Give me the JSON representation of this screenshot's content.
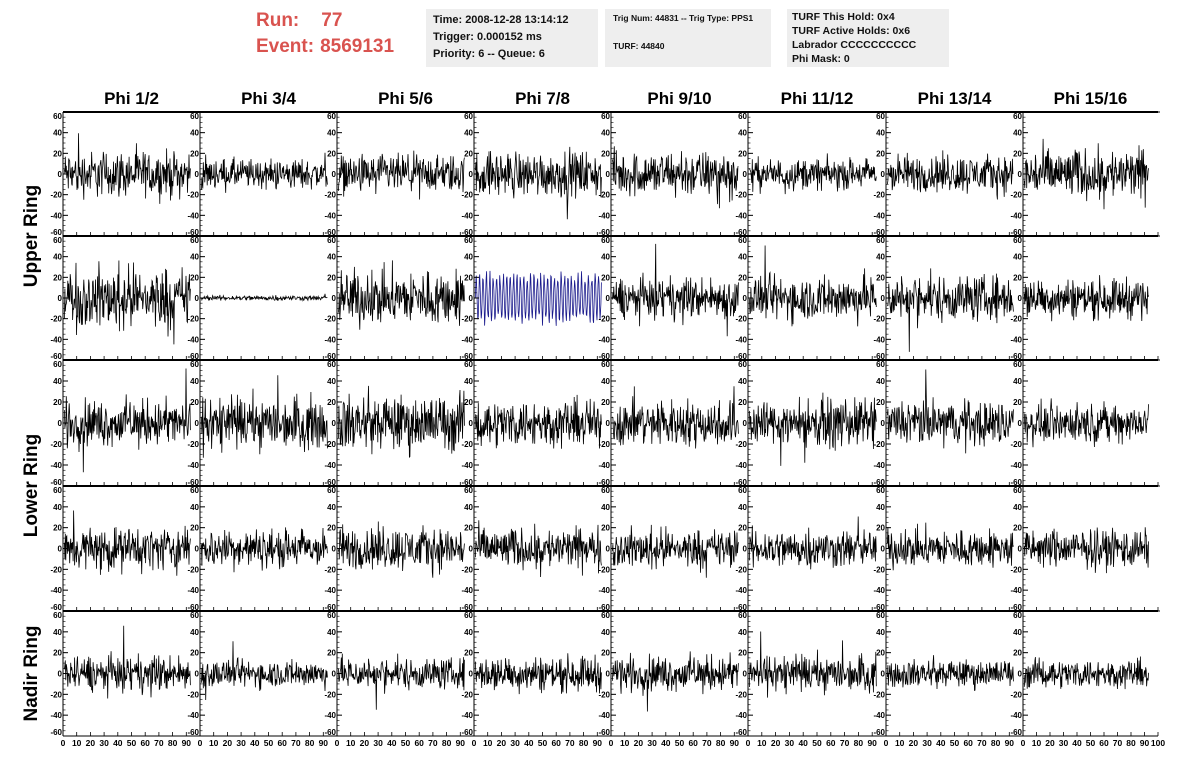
{
  "header": {
    "run_label": "Run:",
    "run_value": "77",
    "event_label": "Event:",
    "event_value": "8569131"
  },
  "info_time": {
    "time": "Time: 2008-12-28 13:14:12",
    "trigger": "Trigger: 0.000152 ms",
    "priority": "Priority: 6 -- Queue: 6"
  },
  "info_trig": {
    "trig": "Trig Num: 44831 -- Trig Type: PPS1",
    "turf": "TURF: 44840"
  },
  "info_turf": {
    "this_hold": "TURF This Hold: 0x4",
    "active_holds": "TURF Active Holds: 0x6",
    "labrador": "Labrador CCCCCCCCCC",
    "phi_mask": "Phi Mask: 0"
  },
  "colors": {
    "trace": "#000000",
    "highlight": "#1a1a8c",
    "axis": "#000000"
  },
  "chart_data": {
    "type": "line",
    "columns": [
      "Phi 1/2",
      "Phi 3/4",
      "Phi 5/6",
      "Phi 7/8",
      "Phi 9/10",
      "Phi 11/12",
      "Phi 13/14",
      "Phi 15/16"
    ],
    "rings": [
      "Upper Ring",
      "Lower Ring",
      "Nadir Ring"
    ],
    "ylim": [
      -60,
      60
    ],
    "yticks": [
      "60",
      "40",
      "20",
      "0",
      "-20",
      "-40",
      "-60"
    ],
    "xlim": [
      0,
      100
    ],
    "xticks": [
      "0",
      "10",
      "20",
      "30",
      "40",
      "50",
      "60",
      "70",
      "80",
      "90",
      "100"
    ],
    "highlighted_panel": {
      "row": 1,
      "col": 3
    },
    "panel_amplitude": [
      [
        18,
        12,
        15,
        18,
        18,
        12,
        15,
        20
      ],
      [
        24,
        2,
        22,
        25,
        16,
        18,
        18,
        16
      ],
      [
        18,
        20,
        22,
        18,
        18,
        18,
        18,
        15
      ],
      [
        17,
        15,
        17,
        16,
        15,
        15,
        15,
        15
      ],
      [
        14,
        11,
        12,
        14,
        14,
        14,
        11,
        11
      ]
    ]
  }
}
